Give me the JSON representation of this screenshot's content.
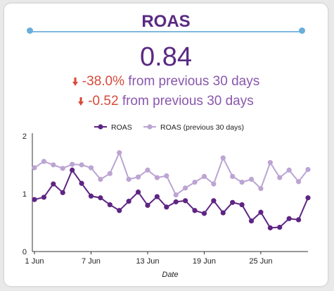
{
  "card": {
    "title": "ROAS",
    "value": "0.84",
    "change_pct": "-38.0%",
    "change_abs": "-0.52",
    "comparison_text": "from previous 30 days",
    "colors": {
      "title": "#5a2a82",
      "negative": "#d64a3a",
      "current_series": "#5e2583",
      "previous_series": "#bca4d3",
      "divider": "#7fb9dd"
    },
    "arrow_icon": "down-arrow-icon"
  },
  "chart_data": {
    "type": "line",
    "xlabel": "Date",
    "ylabel": "",
    "ylim": [
      0,
      2
    ],
    "yticks": [
      0,
      1,
      2
    ],
    "xticks": [
      "1 Jun",
      "7 Jun",
      "13 Jun",
      "19 Jun",
      "25 Jun"
    ],
    "xtick_index": [
      0,
      6,
      12,
      18,
      24
    ],
    "legend_position": "top-center",
    "grid": false,
    "series": [
      {
        "name": "ROAS",
        "values": [
          0.9,
          0.94,
          1.17,
          1.02,
          1.41,
          1.18,
          0.96,
          0.93,
          0.81,
          0.71,
          0.87,
          1.03,
          0.8,
          0.95,
          0.77,
          0.86,
          0.88,
          0.71,
          0.66,
          0.88,
          0.67,
          0.85,
          0.81,
          0.53,
          0.68,
          0.41,
          0.42,
          0.57,
          0.55,
          0.93
        ]
      },
      {
        "name": "ROAS (previous 30 days)",
        "values": [
          1.45,
          1.56,
          1.5,
          1.44,
          1.51,
          1.5,
          1.45,
          1.25,
          1.35,
          1.71,
          1.25,
          1.29,
          1.41,
          1.28,
          1.31,
          0.98,
          1.1,
          1.2,
          1.3,
          1.17,
          1.62,
          1.3,
          1.2,
          1.25,
          1.09,
          1.54,
          1.28,
          1.41,
          1.21,
          1.42
        ]
      }
    ]
  }
}
